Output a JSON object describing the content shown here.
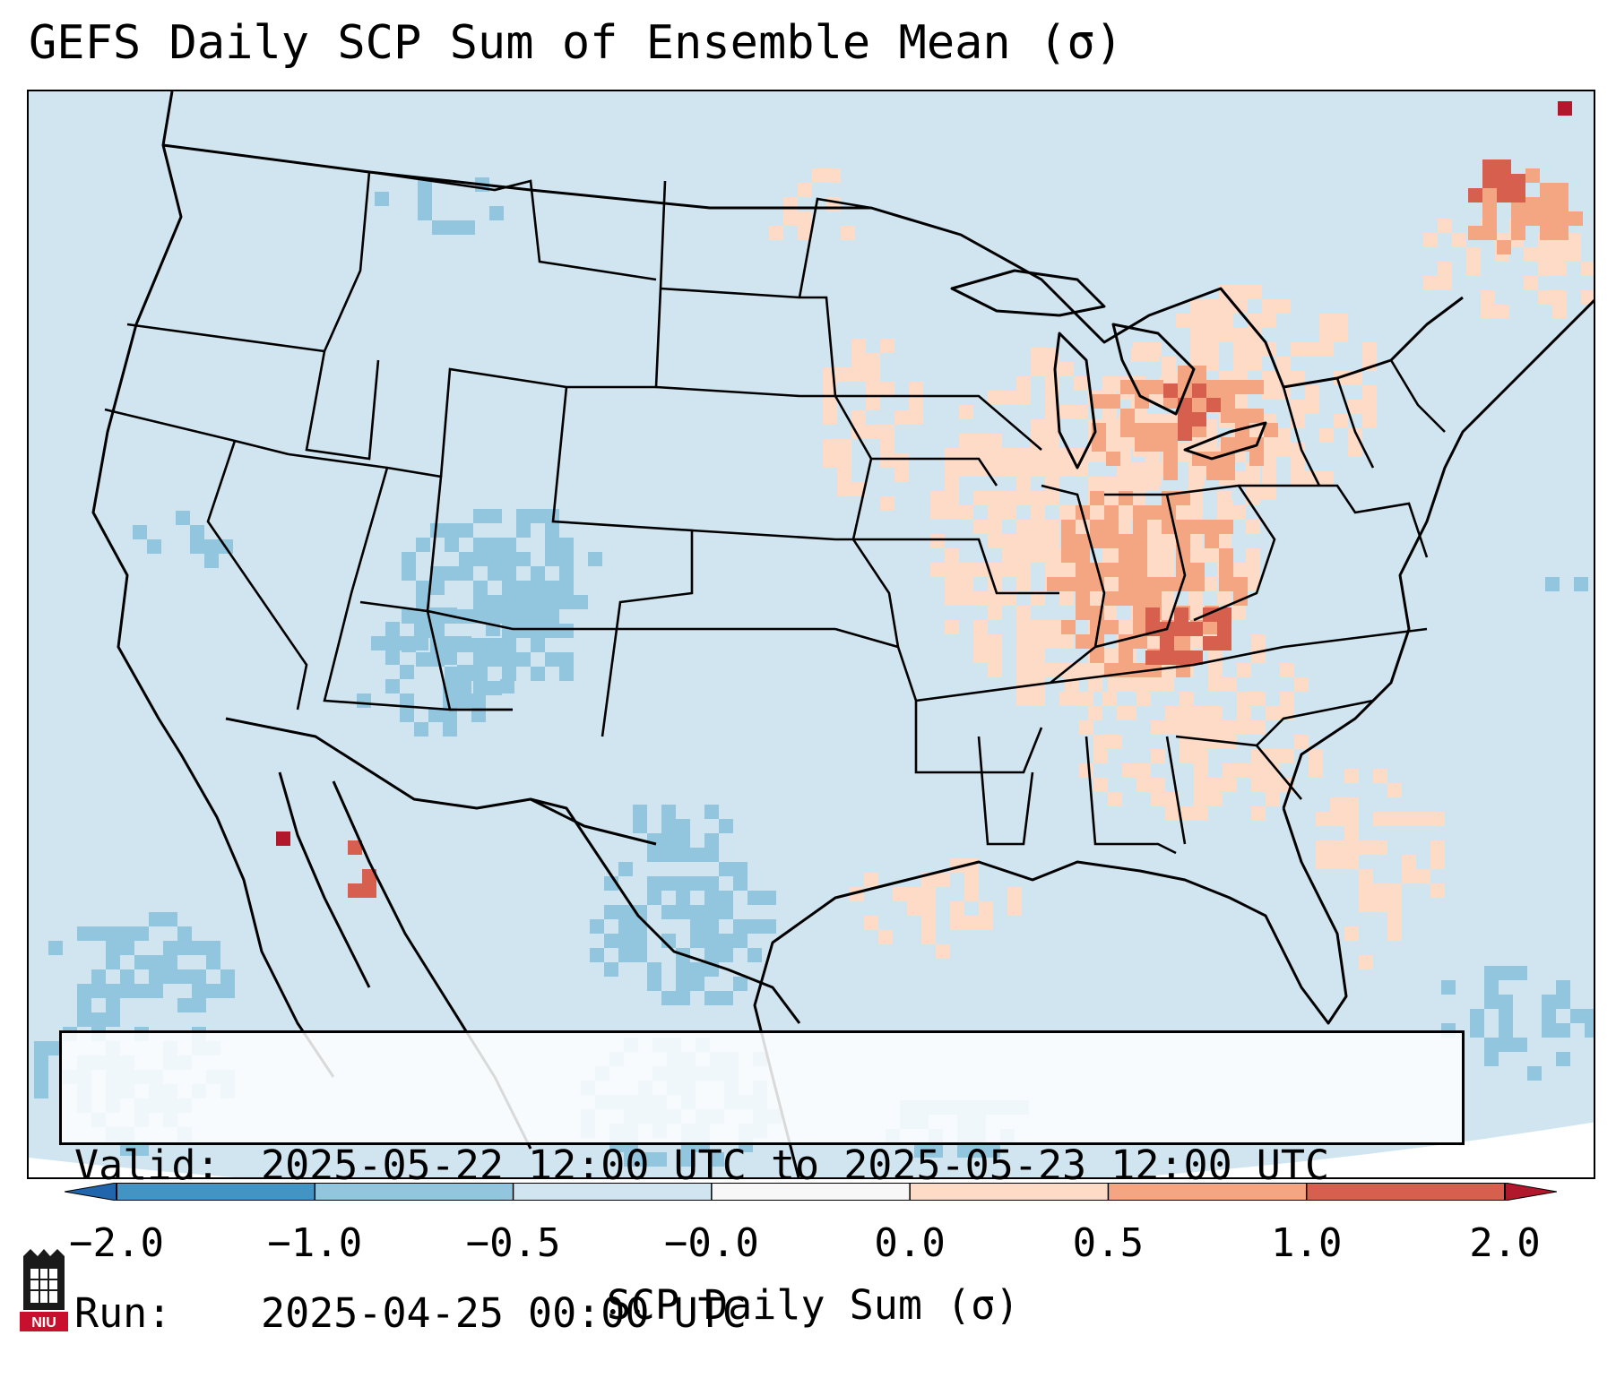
{
  "title": "GEFS Daily SCP Sum of Ensemble Mean (σ)",
  "info": {
    "valid_key": "Valid:",
    "valid_value": "2025-05-22 12:00 UTC to 2025-05-23 12:00 UTC",
    "run_key": "Run:",
    "run_value": "2025-04-25 00:00 UTC"
  },
  "colorbar": {
    "label": "SCP Daily Sum (σ)",
    "ticks": [
      "−2.0",
      "−1.0",
      "−0.5",
      "−0.0",
      "0.0",
      "0.5",
      "1.0",
      "2.0"
    ],
    "colors": [
      "#4393c3",
      "#92c5de",
      "#d1e5f0",
      "#f7f7f7",
      "#fddbc7",
      "#f4a582",
      "#d6604d"
    ],
    "under_color": "#2166ac",
    "over_color": "#b2182b"
  },
  "map": {
    "background_color": "#d1e5f0",
    "land_line_color": "#000000",
    "projection": "Lambert Conformal, CONUS",
    "palette": {
      "neg2": "#92c5de",
      "pos1": "#fddbc7",
      "pos2": "#f4a582",
      "pos3": "#d6604d",
      "pos4": "#b2182b"
    }
  },
  "logo": {
    "text": "NIU"
  }
}
